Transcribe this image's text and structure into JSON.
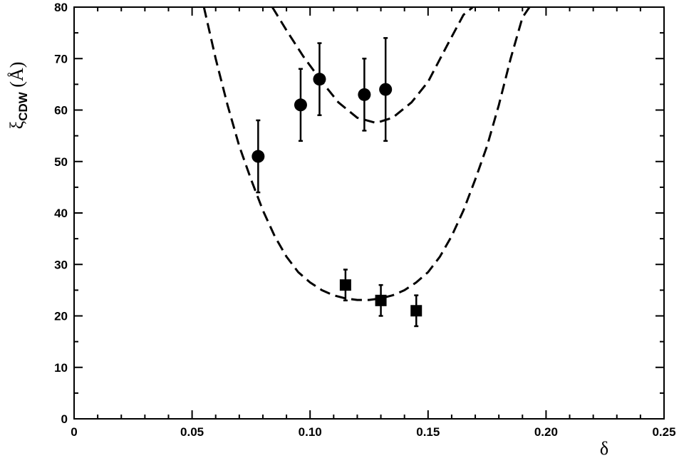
{
  "chart_data": {
    "type": "scatter",
    "xlabel": "δ",
    "ylabel": {
      "main": "ξ",
      "subscript": "CDW",
      "unit": " (Å)"
    },
    "xlim": [
      0,
      0.25
    ],
    "ylim": [
      0,
      80
    ],
    "x_ticks": [
      0,
      0.05,
      0.1,
      0.15,
      0.2,
      0.25
    ],
    "x_tick_labels": [
      "0",
      "0.05",
      "0.10",
      "0.15",
      "0.20",
      "0.25"
    ],
    "x_minor_step": 0.01,
    "y_ticks": [
      0,
      10,
      20,
      30,
      40,
      50,
      60,
      70,
      80
    ],
    "y_tick_labels": [
      "0",
      "10",
      "20",
      "30",
      "40",
      "50",
      "60",
      "70",
      "80"
    ],
    "y_minor_step": 5,
    "grid": false,
    "series": [
      {
        "marker": "circle",
        "points": [
          {
            "x": 0.078,
            "y": 51,
            "lo": 44,
            "hi": 58
          },
          {
            "x": 0.096,
            "y": 61,
            "lo": 54,
            "hi": 68
          },
          {
            "x": 0.104,
            "y": 66,
            "lo": 59,
            "hi": 73
          },
          {
            "x": 0.123,
            "y": 63,
            "lo": 56,
            "hi": 70
          },
          {
            "x": 0.132,
            "y": 64,
            "lo": 54,
            "hi": 74
          }
        ]
      },
      {
        "marker": "square",
        "points": [
          {
            "x": 0.115,
            "y": 26,
            "lo": 23,
            "hi": 29
          },
          {
            "x": 0.13,
            "y": 23,
            "lo": 20,
            "hi": 26
          },
          {
            "x": 0.145,
            "y": 21,
            "lo": 18,
            "hi": 24
          }
        ]
      }
    ],
    "fit_curves": [
      {
        "style": "dashed",
        "x": [
          0.084,
          0.09,
          0.097,
          0.105,
          0.112,
          0.12,
          0.128,
          0.135,
          0.143,
          0.15,
          0.158,
          0.165,
          0.169
        ],
        "y": [
          80,
          75.5,
          70.5,
          65.5,
          61.5,
          58.5,
          57.5,
          58.5,
          61.5,
          65.5,
          72.5,
          78.5,
          80
        ]
      },
      {
        "style": "dashed",
        "x": [
          0.055,
          0.06,
          0.065,
          0.07,
          0.075,
          0.08,
          0.085,
          0.09,
          0.095,
          0.1,
          0.105,
          0.11,
          0.115,
          0.12,
          0.125,
          0.13,
          0.135,
          0.14,
          0.145,
          0.15,
          0.155,
          0.16,
          0.165,
          0.17,
          0.175,
          0.18,
          0.185,
          0.19,
          0.193
        ],
        "y": [
          80,
          70,
          61,
          53,
          46.5,
          40.5,
          35.5,
          31.5,
          28.5,
          26.5,
          25,
          24,
          23.4,
          23.1,
          23.1,
          23.4,
          24,
          25,
          26.5,
          28.5,
          31.5,
          35.5,
          40.5,
          46.5,
          53,
          61,
          70,
          78,
          80
        ]
      }
    ]
  }
}
